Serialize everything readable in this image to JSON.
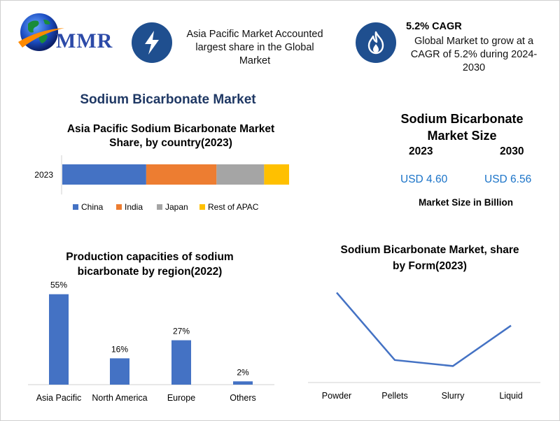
{
  "logo": {
    "text": "MMR",
    "icon": "globe-icon"
  },
  "highlights": [
    {
      "icon": "lightning-icon",
      "text_lines": [
        "Asia Pacific Market Accounted",
        "largest share in the Global",
        "Market"
      ]
    },
    {
      "icon": "flame-icon",
      "title": "5.2% CAGR",
      "text_lines": [
        "Global Market to grow at a",
        "CAGR of 5.2% during 2024-",
        "2030"
      ]
    }
  ],
  "main_title": "Sodium Bicarbonate Market",
  "market_size": {
    "title_lines": [
      "Sodium Bicarbonate",
      "Market Size"
    ],
    "years": [
      "2023",
      "2030"
    ],
    "values": [
      "USD 4.60",
      "USD 6.56"
    ],
    "note": "Market Size in Billion"
  },
  "chart_data": [
    {
      "type": "bar",
      "orientation": "horizontal-stacked",
      "title": "Asia Pacific Sodium Bicarbonate Market Share, by country(2023)",
      "title_lines": [
        "Asia Pacific Sodium Bicarbonate Market",
        "Share, by country(2023)"
      ],
      "categories": [
        "2023"
      ],
      "series": [
        {
          "name": "China",
          "values": [
            37
          ],
          "color": "#4472c4"
        },
        {
          "name": "India",
          "values": [
            31
          ],
          "color": "#ed7d31"
        },
        {
          "name": "Japan",
          "values": [
            21
          ],
          "color": "#a5a5a5"
        },
        {
          "name": "Rest of APAC",
          "values": [
            11
          ],
          "color": "#ffc000"
        }
      ],
      "legend": "bottom",
      "grid": false
    },
    {
      "type": "bar",
      "title": "Production capacities of sodium bicarbonate by region(2022)",
      "title_lines": [
        "Production capacities of sodium",
        "bicarbonate by region(2022)"
      ],
      "categories": [
        "Asia Pacific",
        "North America",
        "Europe",
        "Others"
      ],
      "values": [
        55,
        16,
        27,
        2
      ],
      "data_labels": [
        "55%",
        "16%",
        "27%",
        "2%"
      ],
      "ylim": [
        0,
        60
      ],
      "color": "#4472c4",
      "grid": false
    },
    {
      "type": "line",
      "title": "Sodium Bicarbonate Market, share by Form(2023)",
      "title_lines": [
        "Sodium Bicarbonate Market, share",
        "by Form(2023)"
      ],
      "categories": [
        "Powder",
        "Pellets",
        "Slurry",
        "Liquid"
      ],
      "values": [
        60,
        15,
        11,
        38
      ],
      "ylim": [
        0,
        70
      ],
      "color": "#4472c4",
      "grid": false
    }
  ]
}
